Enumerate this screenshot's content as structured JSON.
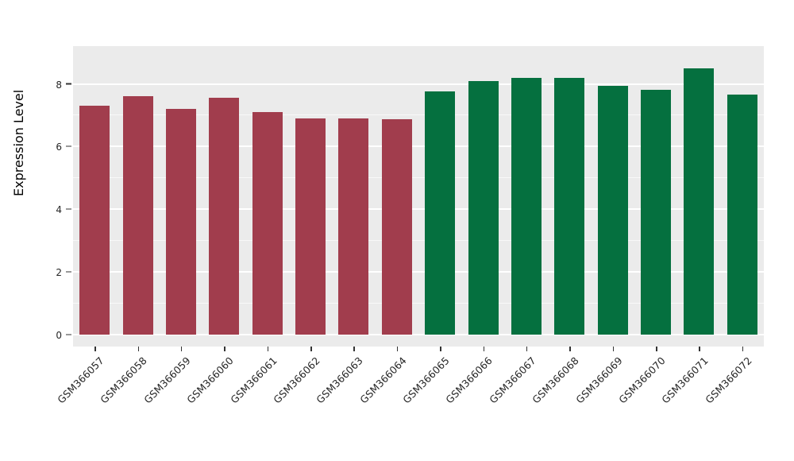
{
  "chart_data": {
    "type": "bar",
    "title": "",
    "xlabel": "",
    "ylabel": "Expression Level",
    "categories": [
      "GSM366057",
      "GSM366058",
      "GSM366059",
      "GSM366060",
      "GSM366061",
      "GSM366062",
      "GSM366063",
      "GSM366064",
      "GSM366065",
      "GSM366066",
      "GSM366067",
      "GSM366068",
      "GSM366069",
      "GSM366070",
      "GSM366071",
      "GSM366072"
    ],
    "values": [
      7.3,
      7.6,
      7.2,
      7.55,
      7.1,
      6.9,
      6.9,
      6.87,
      7.75,
      8.1,
      8.2,
      8.2,
      7.95,
      7.82,
      8.5,
      7.65
    ],
    "bar_colors": [
      "#A13D4D",
      "#A13D4D",
      "#A13D4D",
      "#A13D4D",
      "#A13D4D",
      "#A13D4D",
      "#A13D4D",
      "#A13D4D",
      "#05703F",
      "#05703F",
      "#05703F",
      "#05703F",
      "#05703F",
      "#05703F",
      "#05703F",
      "#05703F"
    ],
    "ylim": [
      0,
      8.85
    ],
    "yticks": [
      0,
      2,
      4,
      6,
      8
    ],
    "yticks_minor": [
      1,
      3,
      5,
      7
    ],
    "grid": "on",
    "legend": "none",
    "panel_background": "#EBEBEB",
    "grid_color": "#FFFFFF"
  }
}
